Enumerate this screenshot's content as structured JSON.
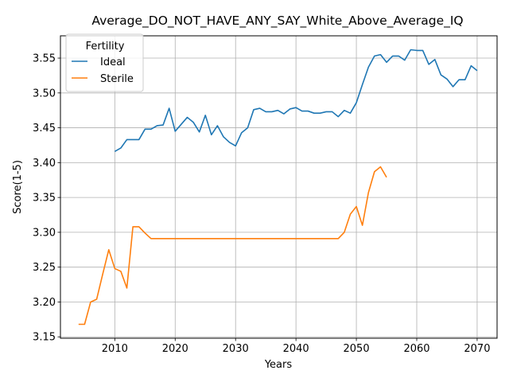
{
  "chart_data": {
    "type": "line",
    "title": "Average_DO_NOT_HAVE_ANY_SAY_White_Above_Average_IQ",
    "xlabel": "Years",
    "ylabel": "Score(1-5)",
    "xlim": [
      2001,
      2073.3
    ],
    "ylim": [
      3.148,
      3.582
    ],
    "xticks": [
      2010,
      2020,
      2030,
      2040,
      2050,
      2060,
      2070
    ],
    "yticks": [
      3.15,
      3.2,
      3.25,
      3.3,
      3.35,
      3.4,
      3.45,
      3.5,
      3.55
    ],
    "ytick_labels": [
      "3.15",
      "3.20",
      "3.25",
      "3.30",
      "3.35",
      "3.40",
      "3.45",
      "3.50",
      "3.55"
    ],
    "grid": true,
    "legend": {
      "title": "Fertility",
      "placement": "upper-left"
    },
    "series": [
      {
        "name": "Ideal",
        "color": "#1f77b4",
        "x": [
          2010,
          2011,
          2012,
          2013,
          2014,
          2015,
          2016,
          2017,
          2018,
          2019,
          2020,
          2021,
          2022,
          2023,
          2024,
          2025,
          2026,
          2027,
          2028,
          2029,
          2030,
          2031,
          2032,
          2033,
          2034,
          2035,
          2036,
          2037,
          2038,
          2039,
          2040,
          2041,
          2042,
          2043,
          2044,
          2045,
          2046,
          2047,
          2048,
          2049,
          2050,
          2051,
          2052,
          2053,
          2054,
          2055,
          2056,
          2057,
          2058,
          2059,
          2060,
          2061,
          2062,
          2063,
          2064,
          2065,
          2066,
          2067,
          2068,
          2069,
          2070
        ],
        "values": [
          3.416,
          3.421,
          3.433,
          3.433,
          3.433,
          3.448,
          3.448,
          3.453,
          3.454,
          3.478,
          3.445,
          3.455,
          3.465,
          3.458,
          3.444,
          3.468,
          3.44,
          3.453,
          3.437,
          3.429,
          3.424,
          3.443,
          3.45,
          3.476,
          3.478,
          3.473,
          3.473,
          3.475,
          3.47,
          3.477,
          3.479,
          3.474,
          3.474,
          3.471,
          3.471,
          3.473,
          3.473,
          3.466,
          3.475,
          3.471,
          3.486,
          3.512,
          3.537,
          3.553,
          3.555,
          3.544,
          3.553,
          3.553,
          3.547,
          3.562,
          3.561,
          3.561,
          3.541,
          3.548,
          3.526,
          3.52,
          3.509,
          3.519,
          3.519,
          3.539,
          3.532
        ]
      },
      {
        "name": "Sterile",
        "color": "#ff7f0e",
        "x": [
          2004,
          2005,
          2006,
          2007,
          2008,
          2009,
          2010,
          2011,
          2012,
          2013,
          2014,
          2015,
          2016,
          2017,
          2018,
          2019,
          2020,
          2021,
          2022,
          2023,
          2024,
          2025,
          2026,
          2027,
          2028,
          2029,
          2030,
          2031,
          2032,
          2033,
          2034,
          2035,
          2036,
          2037,
          2038,
          2039,
          2040,
          2041,
          2042,
          2043,
          2044,
          2045,
          2046,
          2047,
          2048,
          2049,
          2050,
          2051,
          2052,
          2053,
          2054,
          2055
        ],
        "values": [
          3.168,
          3.168,
          3.2,
          3.204,
          3.24,
          3.275,
          3.248,
          3.244,
          3.22,
          3.308,
          3.308,
          3.299,
          3.291,
          3.291,
          3.291,
          3.291,
          3.291,
          3.291,
          3.291,
          3.291,
          3.291,
          3.291,
          3.291,
          3.291,
          3.291,
          3.291,
          3.291,
          3.291,
          3.291,
          3.291,
          3.291,
          3.291,
          3.291,
          3.291,
          3.291,
          3.291,
          3.291,
          3.291,
          3.291,
          3.291,
          3.291,
          3.291,
          3.291,
          3.291,
          3.3,
          3.326,
          3.337,
          3.31,
          3.357,
          3.387,
          3.394,
          3.379
        ]
      }
    ]
  }
}
